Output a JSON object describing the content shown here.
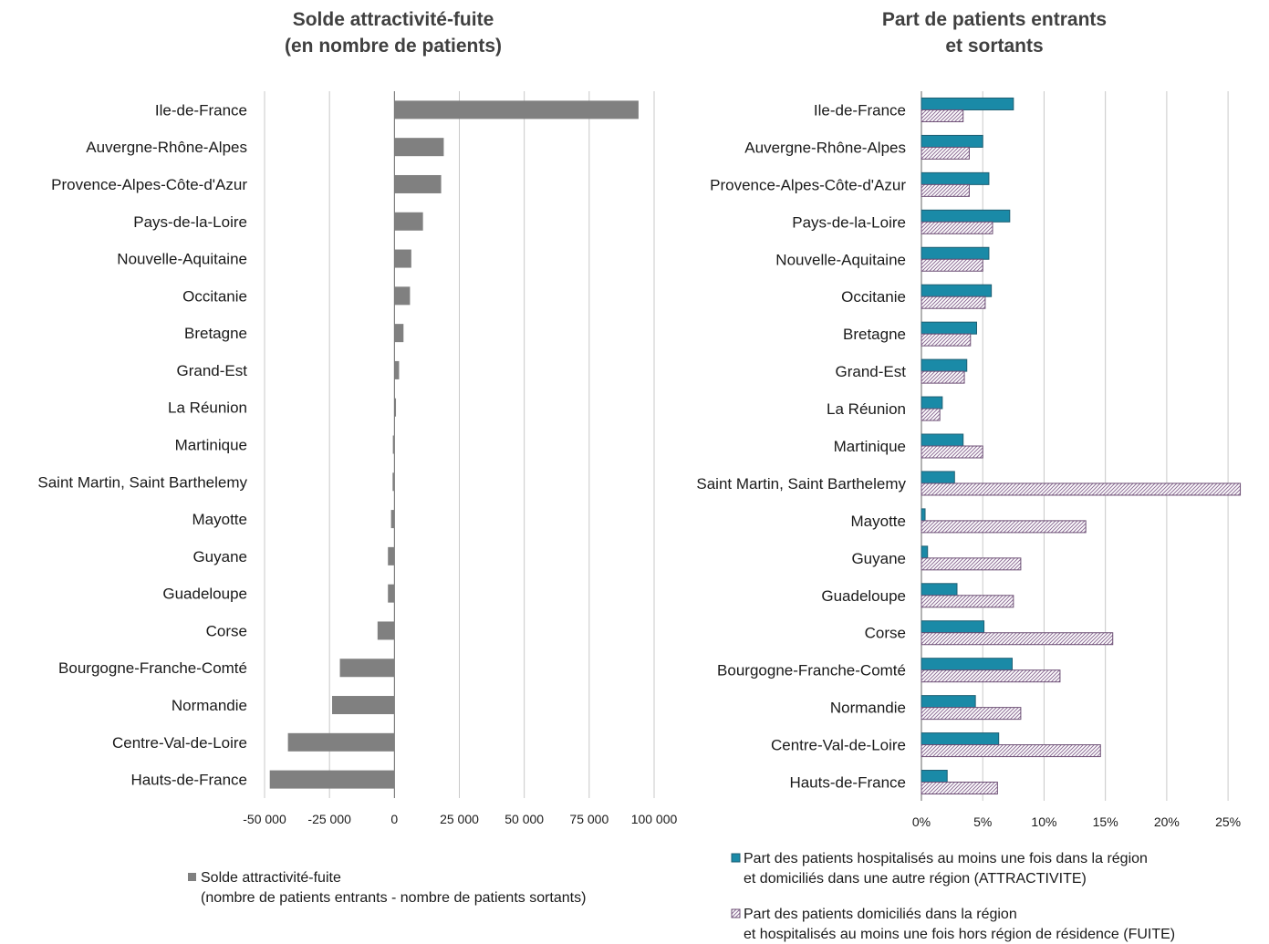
{
  "chart_data": [
    {
      "type": "bar",
      "orientation": "horizontal",
      "title": [
        "Solde attractivité-fuite",
        "(en nombre de patients)"
      ],
      "categories": [
        "Ile-de-France",
        "Auvergne-Rhône-Alpes",
        "Provence-Alpes-Côte-d'Azur",
        "Pays-de-la-Loire",
        "Nouvelle-Aquitaine",
        "Occitanie",
        "Bretagne",
        "Grand-Est",
        "La Réunion",
        "Martinique",
        "Saint Martin, Saint Barthelemy",
        "Mayotte",
        "Guyane",
        "Guadeloupe",
        "Corse",
        "Bourgogne-Franche-Comté",
        "Normandie",
        "Centre-Val-de-Loire",
        "Hauts-de-France"
      ],
      "series": [
        {
          "name": "Solde attractivité-fuite",
          "values": [
            94000,
            19000,
            18000,
            11000,
            6500,
            6000,
            3500,
            1800,
            600,
            -600,
            -700,
            -1300,
            -2500,
            -2500,
            -6500,
            -21000,
            -24000,
            -41000,
            -48000
          ],
          "color": "#808080"
        }
      ],
      "xlim": [
        -50000,
        100000
      ],
      "ticks": [
        -50000,
        -25000,
        0,
        25000,
        50000,
        75000,
        100000
      ],
      "tick_labels": [
        "-50 000",
        "-25 000",
        "0",
        "25 000",
        "50 000",
        "75 000",
        "100 000"
      ],
      "grid": "vertical",
      "legend": {
        "position": "bottom",
        "lines": [
          "Solde attractivité-fuite",
          "(nombre de patients entrants - nombre de patients sortants)"
        ]
      }
    },
    {
      "type": "bar",
      "orientation": "horizontal",
      "title": [
        "Part de patients entrants",
        "et sortants"
      ],
      "categories": [
        "Ile-de-France",
        "Auvergne-Rhône-Alpes",
        "Provence-Alpes-Côte-d'Azur",
        "Pays-de-la-Loire",
        "Nouvelle-Aquitaine",
        "Occitanie",
        "Bretagne",
        "Grand-Est",
        "La Réunion",
        "Martinique",
        "Saint Martin, Saint Barthelemy",
        "Mayotte",
        "Guyane",
        "Guadeloupe",
        "Corse",
        "Bourgogne-Franche-Comté",
        "Normandie",
        "Centre-Val-de-Loire",
        "Hauts-de-France"
      ],
      "series": [
        {
          "name": "Part des patients hospitalisés au moins une fois dans la région et domiciliés dans une autre région (ATTRACTIVITE)",
          "legend_lines": [
            "Part des patients hospitalisés au moins une fois dans la région",
            "et domiciliés dans une autre région (ATTRACTIVITE)"
          ],
          "values": [
            7.5,
            5.0,
            5.5,
            7.2,
            5.5,
            5.7,
            4.5,
            3.7,
            1.7,
            3.4,
            2.7,
            0.3,
            0.5,
            2.9,
            5.1,
            7.4,
            4.4,
            6.3,
            2.1
          ],
          "color": "#1a8aa7"
        },
        {
          "name": "Part des patients domiciliés dans la région et hospitalisés au moins une fois hors région de résidence (FUITE)",
          "legend_lines": [
            "Part des patients domiciliés dans la région",
            "et hospitalisés au moins une fois hors région de résidence (FUITE)"
          ],
          "values": [
            3.4,
            3.9,
            3.9,
            5.8,
            5.0,
            5.2,
            4.0,
            3.5,
            1.5,
            5.0,
            26.0,
            13.4,
            8.1,
            7.5,
            15.6,
            11.3,
            8.1,
            14.6,
            6.2
          ],
          "color": "#b49ab8"
        }
      ],
      "xlim": [
        0,
        27
      ],
      "ticks": [
        0,
        5,
        10,
        15,
        20,
        25
      ],
      "tick_labels": [
        "0%",
        "5%",
        "10%",
        "15%",
        "20%",
        "25%"
      ],
      "grid": "vertical",
      "legend": {
        "position": "bottom"
      }
    }
  ]
}
